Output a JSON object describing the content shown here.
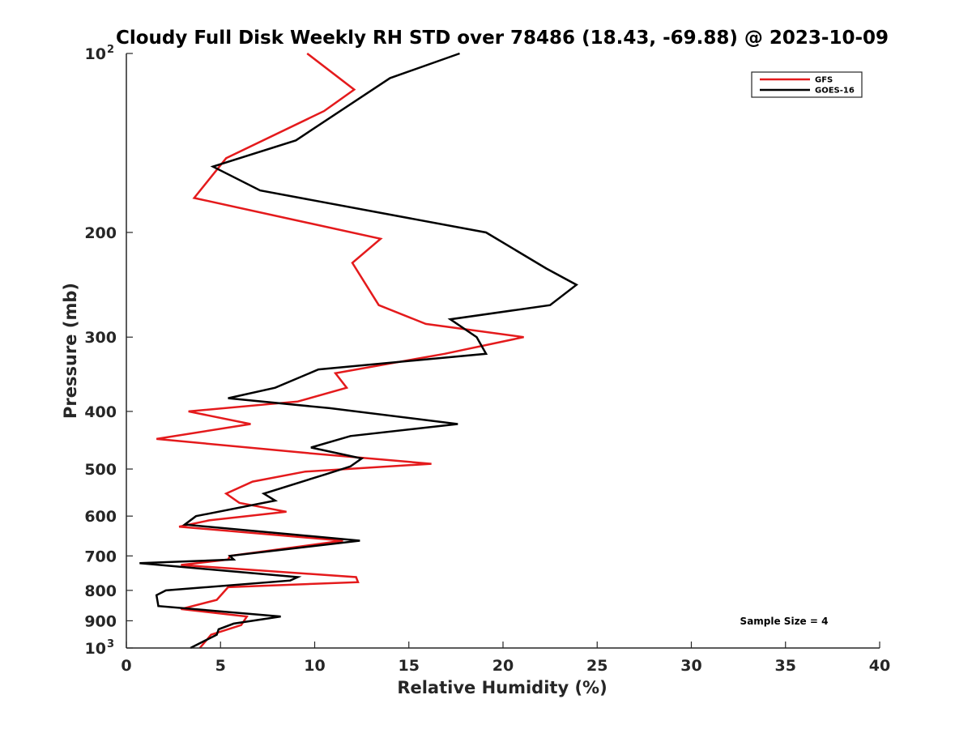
{
  "chart_data": {
    "type": "line",
    "title": "Cloudy Full Disk Weekly RH STD over 78486 (18.43, -69.88) @ 2023-10-09",
    "xlabel": "Relative Humidity (%)",
    "ylabel": "Pressure (mb)",
    "xlim": [
      0,
      40
    ],
    "ylim": [
      100,
      1000
    ],
    "yscale": "log",
    "y_reversed": true,
    "x_ticks": [
      "0",
      "5",
      "10",
      "15",
      "20",
      "25",
      "30",
      "35",
      "40"
    ],
    "y_ticks": [
      {
        "value": 100,
        "base": "10",
        "exp": "2"
      },
      {
        "value": 200,
        "label": "200"
      },
      {
        "value": 300,
        "label": "300"
      },
      {
        "value": 400,
        "label": "400"
      },
      {
        "value": 500,
        "label": "500"
      },
      {
        "value": 600,
        "label": "600"
      },
      {
        "value": 700,
        "label": "700"
      },
      {
        "value": 800,
        "label": "800"
      },
      {
        "value": 900,
        "label": "900"
      },
      {
        "value": 1000,
        "base": "10",
        "exp": "3"
      }
    ],
    "grid": false,
    "legend_position": "top-right",
    "annotation": "Sample Size = 4",
    "series": [
      {
        "name": "GFS",
        "color": "#e41a1c",
        "points": [
          [
            9.6,
            100
          ],
          [
            12.1,
            115
          ],
          [
            10.5,
            125
          ],
          [
            5.3,
            150
          ],
          [
            3.6,
            175
          ],
          [
            13.5,
            205
          ],
          [
            12.0,
            225
          ],
          [
            13.4,
            265
          ],
          [
            15.9,
            285
          ],
          [
            21.1,
            300
          ],
          [
            16.9,
            320
          ],
          [
            11.1,
            345
          ],
          [
            11.7,
            365
          ],
          [
            9.1,
            385
          ],
          [
            3.3,
            400
          ],
          [
            6.6,
            420
          ],
          [
            1.6,
            445
          ],
          [
            9.6,
            470
          ],
          [
            16.2,
            490
          ],
          [
            9.5,
            505
          ],
          [
            6.7,
            525
          ],
          [
            5.3,
            550
          ],
          [
            6.0,
            570
          ],
          [
            8.5,
            590
          ],
          [
            4.4,
            610
          ],
          [
            2.8,
            625
          ],
          [
            11.5,
            660
          ],
          [
            5.5,
            700
          ],
          [
            5.4,
            710
          ],
          [
            2.9,
            725
          ],
          [
            12.2,
            760
          ],
          [
            12.3,
            775
          ],
          [
            5.4,
            790
          ],
          [
            4.8,
            830
          ],
          [
            2.9,
            860
          ],
          [
            6.4,
            885
          ],
          [
            6.1,
            915
          ],
          [
            4.5,
            950
          ],
          [
            3.9,
            1000
          ]
        ]
      },
      {
        "name": "GOES-16",
        "color": "#000000",
        "points": [
          [
            17.7,
            100
          ],
          [
            14.0,
            110
          ],
          [
            9.0,
            140
          ],
          [
            4.6,
            155
          ],
          [
            7.1,
            170
          ],
          [
            19.1,
            200
          ],
          [
            22.3,
            230
          ],
          [
            23.9,
            245
          ],
          [
            22.5,
            265
          ],
          [
            17.2,
            280
          ],
          [
            18.6,
            300
          ],
          [
            19.1,
            320
          ],
          [
            10.2,
            340
          ],
          [
            7.9,
            365
          ],
          [
            5.4,
            380
          ],
          [
            10.8,
            395
          ],
          [
            17.6,
            420
          ],
          [
            11.9,
            440
          ],
          [
            9.8,
            460
          ],
          [
            12.5,
            480
          ],
          [
            11.9,
            495
          ],
          [
            10.6,
            510
          ],
          [
            7.3,
            550
          ],
          [
            7.9,
            565
          ],
          [
            3.7,
            600
          ],
          [
            3.1,
            620
          ],
          [
            12.4,
            660
          ],
          [
            5.5,
            700
          ],
          [
            5.7,
            710
          ],
          [
            0.7,
            720
          ],
          [
            9.1,
            760
          ],
          [
            8.7,
            770
          ],
          [
            2.1,
            800
          ],
          [
            1.6,
            815
          ],
          [
            1.7,
            850
          ],
          [
            8.2,
            885
          ],
          [
            5.7,
            910
          ],
          [
            4.9,
            930
          ],
          [
            4.8,
            950
          ],
          [
            3.4,
            1000
          ]
        ]
      }
    ]
  }
}
